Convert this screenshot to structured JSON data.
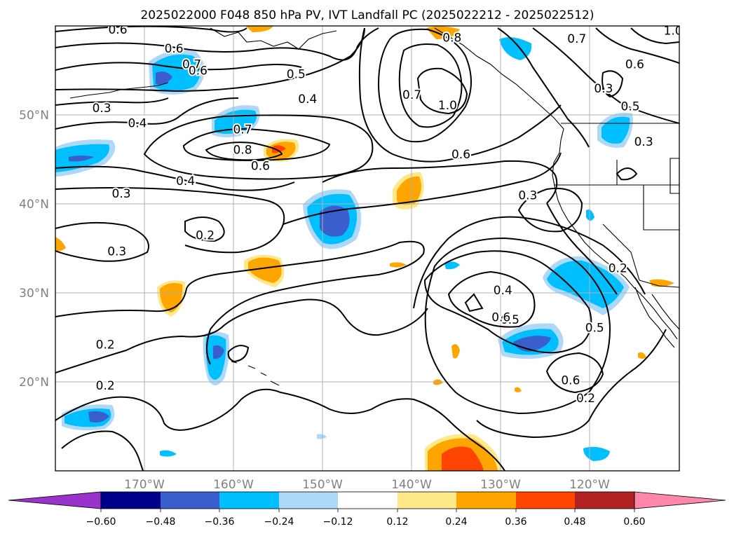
{
  "figure": {
    "title": "2025022000 F048 850 hPa PV, IVT Landfall PC (2025022212 - 2025022512)"
  },
  "map": {
    "projection": "plate carree",
    "lon_range": [
      -180,
      -110
    ],
    "lat_range": [
      10,
      60
    ],
    "gridlines": true,
    "lon_tick_labels": [
      "170°W",
      "160°W",
      "150°W",
      "140°W",
      "130°W",
      "120°W"
    ],
    "lat_tick_labels": [
      "20°N",
      "30°N",
      "40°N",
      "50°N"
    ],
    "colors": {
      "tick_label": "#808080",
      "grid": "#b0b0b0",
      "contour": "#000000",
      "coast": "#000000"
    }
  },
  "colorbar": {
    "tick_labels": [
      "−0.60",
      "−0.48",
      "−0.36",
      "−0.24",
      "−0.12",
      "0.12",
      "0.24",
      "0.36",
      "0.48",
      "0.60"
    ],
    "colors": [
      "#9933cc",
      "#00008b",
      "#3a5fcd",
      "#00bfff",
      "#add8f7",
      "#ffffff",
      "#ffe88a",
      "#ffa500",
      "#ff4500",
      "#b22222",
      "#ff88aa"
    ],
    "extend": "both"
  },
  "contour_labels": [
    {
      "text": "0.6",
      "lon": -173.0,
      "lat": 59.6
    },
    {
      "text": "0.6",
      "lon": -166.7,
      "lat": 57.5
    },
    {
      "text": "0.7",
      "lon": -164.7,
      "lat": 55.7
    },
    {
      "text": "0.6",
      "lon": -164.0,
      "lat": 55.0
    },
    {
      "text": "0.5",
      "lon": -153.0,
      "lat": 54.6
    },
    {
      "text": "0.4",
      "lon": -151.7,
      "lat": 51.8
    },
    {
      "text": "0.3",
      "lon": -174.8,
      "lat": 50.8
    },
    {
      "text": "0.4",
      "lon": -170.8,
      "lat": 49.1
    },
    {
      "text": "0.7",
      "lon": -159.0,
      "lat": 48.4
    },
    {
      "text": "0.8",
      "lon": -159.0,
      "lat": 46.1
    },
    {
      "text": "0.6",
      "lon": -157.0,
      "lat": 44.3
    },
    {
      "text": "0.4",
      "lon": -165.4,
      "lat": 42.6
    },
    {
      "text": "0.3",
      "lon": -172.6,
      "lat": 41.2
    },
    {
      "text": "0.2",
      "lon": -163.2,
      "lat": 36.5
    },
    {
      "text": "0.3",
      "lon": -173.1,
      "lat": 34.7
    },
    {
      "text": "0.2",
      "lon": -174.4,
      "lat": 24.2
    },
    {
      "text": "0.2",
      "lon": -174.4,
      "lat": 19.6
    },
    {
      "text": "0.8",
      "lon": -135.5,
      "lat": 58.7
    },
    {
      "text": "0.7",
      "lon": -140.0,
      "lat": 52.3
    },
    {
      "text": "1.0",
      "lon": -136.0,
      "lat": 51.1
    },
    {
      "text": "0.6",
      "lon": -134.5,
      "lat": 45.6
    },
    {
      "text": "0.3",
      "lon": -127.0,
      "lat": 41.0
    },
    {
      "text": "0.4",
      "lon": -129.8,
      "lat": 30.3
    },
    {
      "text": "0.5",
      "lon": -129.0,
      "lat": 27.0
    },
    {
      "text": "0.6",
      "lon": -130.0,
      "lat": 27.3
    },
    {
      "text": "0.5",
      "lon": -119.5,
      "lat": 26.1
    },
    {
      "text": "0.2",
      "lon": -116.9,
      "lat": 32.8
    },
    {
      "text": "0.6",
      "lon": -122.2,
      "lat": 20.2
    },
    {
      "text": "0.2",
      "lon": -120.5,
      "lat": 18.2
    },
    {
      "text": "0.6",
      "lon": -115.0,
      "lat": 55.7
    },
    {
      "text": "0.7",
      "lon": -121.5,
      "lat": 58.6
    },
    {
      "text": "0.3",
      "lon": -118.5,
      "lat": 53.0
    },
    {
      "text": "0.5",
      "lon": -115.5,
      "lat": 51.0
    },
    {
      "text": "0.3",
      "lon": -114.0,
      "lat": 47.0
    },
    {
      "text": "1.0",
      "lon": -110.7,
      "lat": 59.5
    }
  ]
}
